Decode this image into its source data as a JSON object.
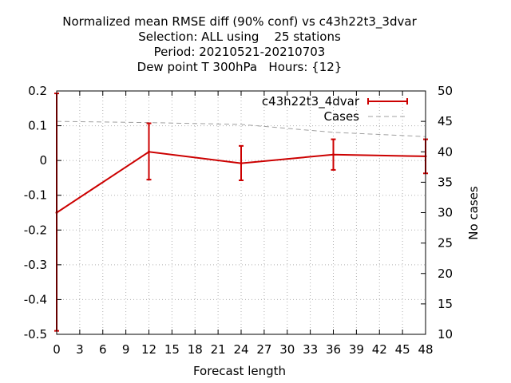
{
  "chart_data": {
    "type": "line",
    "title_lines": [
      "Normalized mean RMSE diff (90% conf) vs c43h22t3_3dvar",
      "Selection: ALL using    25 stations",
      "Period: 20210521-20210703",
      "Dew point T 300hPa   Hours: {12}"
    ],
    "xlabel": "Forecast length",
    "ylabel": "",
    "y2label": "No cases",
    "xlim": [
      0,
      48
    ],
    "ylim": [
      -0.5,
      0.2
    ],
    "y2lim": [
      10,
      50
    ],
    "xticks": [
      "0",
      "3",
      "6",
      "9",
      "12",
      "15",
      "18",
      "21",
      "24",
      "27",
      "30",
      "33",
      "36",
      "39",
      "42",
      "45",
      "48"
    ],
    "yticks": [
      "0.2",
      "0.1",
      "0",
      "-0.1",
      "-0.2",
      "-0.3",
      "-0.4",
      "-0.5"
    ],
    "y2ticks": [
      "50",
      "45",
      "40",
      "35",
      "30",
      "25",
      "20",
      "15",
      "10"
    ],
    "grid": true,
    "legend_position": "top-right",
    "series": [
      {
        "name": "c43h22t3_4dvar",
        "color": "#cc0000",
        "x": [
          0,
          12,
          24,
          36,
          48
        ],
        "y": [
          -0.15,
          0.025,
          -0.008,
          0.017,
          0.012
        ],
        "err_low": [
          -0.49,
          -0.055,
          -0.057,
          -0.027,
          -0.037
        ],
        "err_high": [
          0.193,
          0.107,
          0.042,
          0.061,
          0.061
        ]
      },
      {
        "name": "Cases",
        "color": "#a0a0a0",
        "axis": "y2",
        "x": [
          0,
          12,
          24,
          36,
          48
        ],
        "y": [
          45,
          44.8,
          44.5,
          43.2,
          42.5
        ]
      }
    ]
  }
}
